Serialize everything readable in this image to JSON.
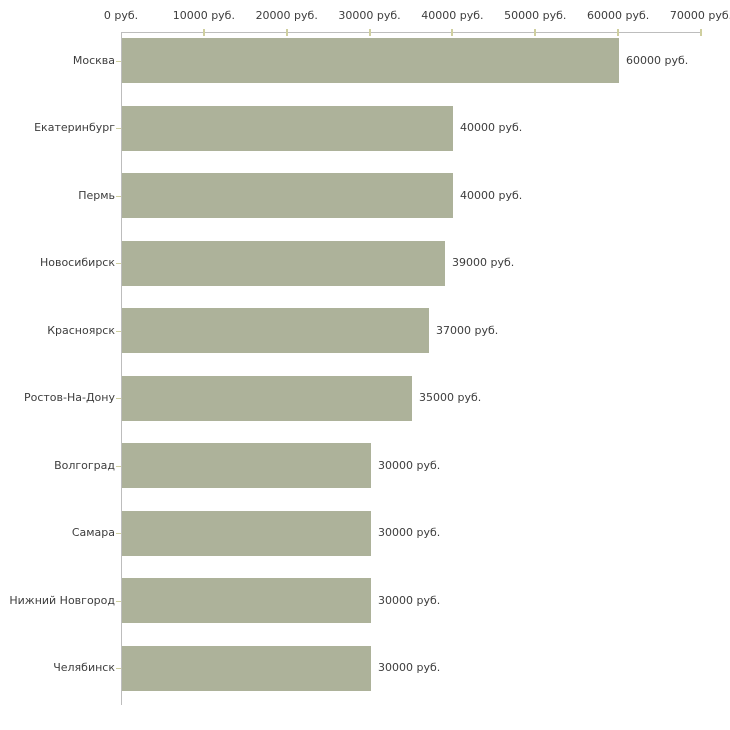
{
  "chart_data": {
    "type": "bar",
    "orientation": "horizontal",
    "title": "",
    "categories": [
      "Москва",
      "Екатеринбург",
      "Пермь",
      "Новосибирск",
      "Красноярск",
      "Ростов-На-Дону",
      "Волгоград",
      "Самара",
      "Нижний Новгород",
      "Челябинск"
    ],
    "values": [
      60000,
      40000,
      40000,
      39000,
      37000,
      35000,
      30000,
      30000,
      30000,
      30000
    ],
    "value_labels": [
      "60000 руб.",
      "40000 руб.",
      "40000 руб.",
      "39000 руб.",
      "37000 руб.",
      "35000 руб.",
      "30000 руб.",
      "30000 руб.",
      "30000 руб.",
      "30000 руб."
    ],
    "x_axis": {
      "min": 0,
      "max": 70000,
      "tick_interval": 10000,
      "position": "top",
      "tick_labels": [
        "0 руб.",
        "10000 руб.",
        "20000 руб.",
        "30000 руб.",
        "40000 руб.",
        "50000 руб.",
        "60000 руб.",
        "70000 руб."
      ]
    },
    "grid": false,
    "legend": false,
    "colors": {
      "bar": "#adb29a",
      "axis_line": "#bdbdbd",
      "tick": "#cfcf9f",
      "text": "#3d3d3d",
      "background": "#ffffff"
    }
  }
}
